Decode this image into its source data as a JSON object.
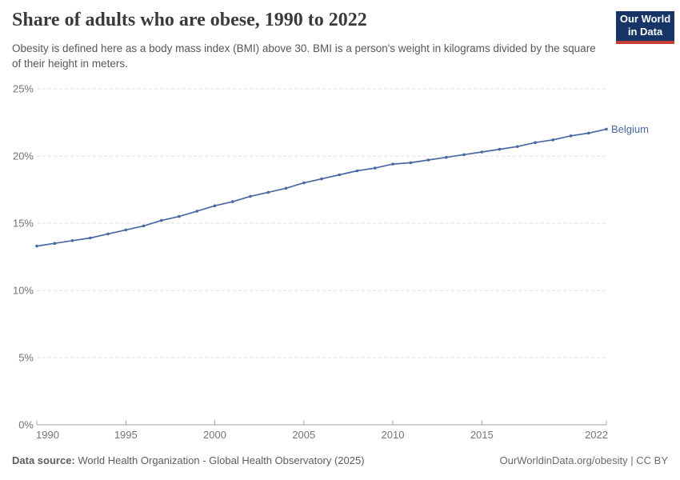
{
  "header": {
    "title": "Share of adults who are obese, 1990 to 2022",
    "subtitle": "Obesity is defined here as a body mass index (BMI) above 30. BMI is a person's weight in kilograms divided by the square of their height in meters."
  },
  "logo": {
    "line1": "Our World",
    "line2": "in Data",
    "bg_color": "#163566",
    "accent_color": "#c73e36"
  },
  "chart_data": {
    "type": "line",
    "title": "Share of adults who are obese, 1990 to 2022",
    "xlabel": "",
    "ylabel": "",
    "x": [
      1990,
      1991,
      1992,
      1993,
      1994,
      1995,
      1996,
      1997,
      1998,
      1999,
      2000,
      2001,
      2002,
      2003,
      2004,
      2005,
      2006,
      2007,
      2008,
      2009,
      2010,
      2011,
      2012,
      2013,
      2014,
      2015,
      2016,
      2017,
      2018,
      2019,
      2020,
      2021,
      2022
    ],
    "series": [
      {
        "name": "Belgium",
        "color": "#4a69a2",
        "values": [
          13.3,
          13.5,
          13.7,
          13.9,
          14.2,
          14.5,
          14.8,
          15.2,
          15.5,
          15.9,
          16.3,
          16.6,
          17.0,
          17.3,
          17.6,
          18.0,
          18.3,
          18.6,
          18.9,
          19.1,
          19.4,
          19.5,
          19.7,
          19.9,
          20.1,
          20.3,
          20.5,
          20.7,
          21.0,
          21.2,
          21.5,
          21.7,
          22.0
        ]
      }
    ],
    "ylim": [
      0,
      25
    ],
    "xlim": [
      1990,
      2022
    ],
    "y_ticks": [
      {
        "value": 0,
        "label": "0%"
      },
      {
        "value": 5,
        "label": "5%"
      },
      {
        "value": 10,
        "label": "10%"
      },
      {
        "value": 15,
        "label": "15%"
      },
      {
        "value": 20,
        "label": "20%"
      },
      {
        "value": 25,
        "label": "25%"
      }
    ],
    "x_ticks": [
      {
        "value": 1990,
        "label": "1990"
      },
      {
        "value": 1995,
        "label": "1995"
      },
      {
        "value": 2000,
        "label": "2000"
      },
      {
        "value": 2005,
        "label": "2005"
      },
      {
        "value": 2010,
        "label": "2010"
      },
      {
        "value": 2015,
        "label": "2015"
      },
      {
        "value": 2022,
        "label": "2022"
      }
    ],
    "grid": "horizontal-dashed",
    "legend_position": "end-of-line-label",
    "colors": {
      "grid": "#dcdcdc",
      "axis": "#a3a3a3",
      "tick_label": "#747474"
    }
  },
  "footer": {
    "data_source_label": "Data source:",
    "data_source_value": "World Health Organization - Global Health Observatory (2025)",
    "attribution": "OurWorldinData.org/obesity | CC BY"
  }
}
